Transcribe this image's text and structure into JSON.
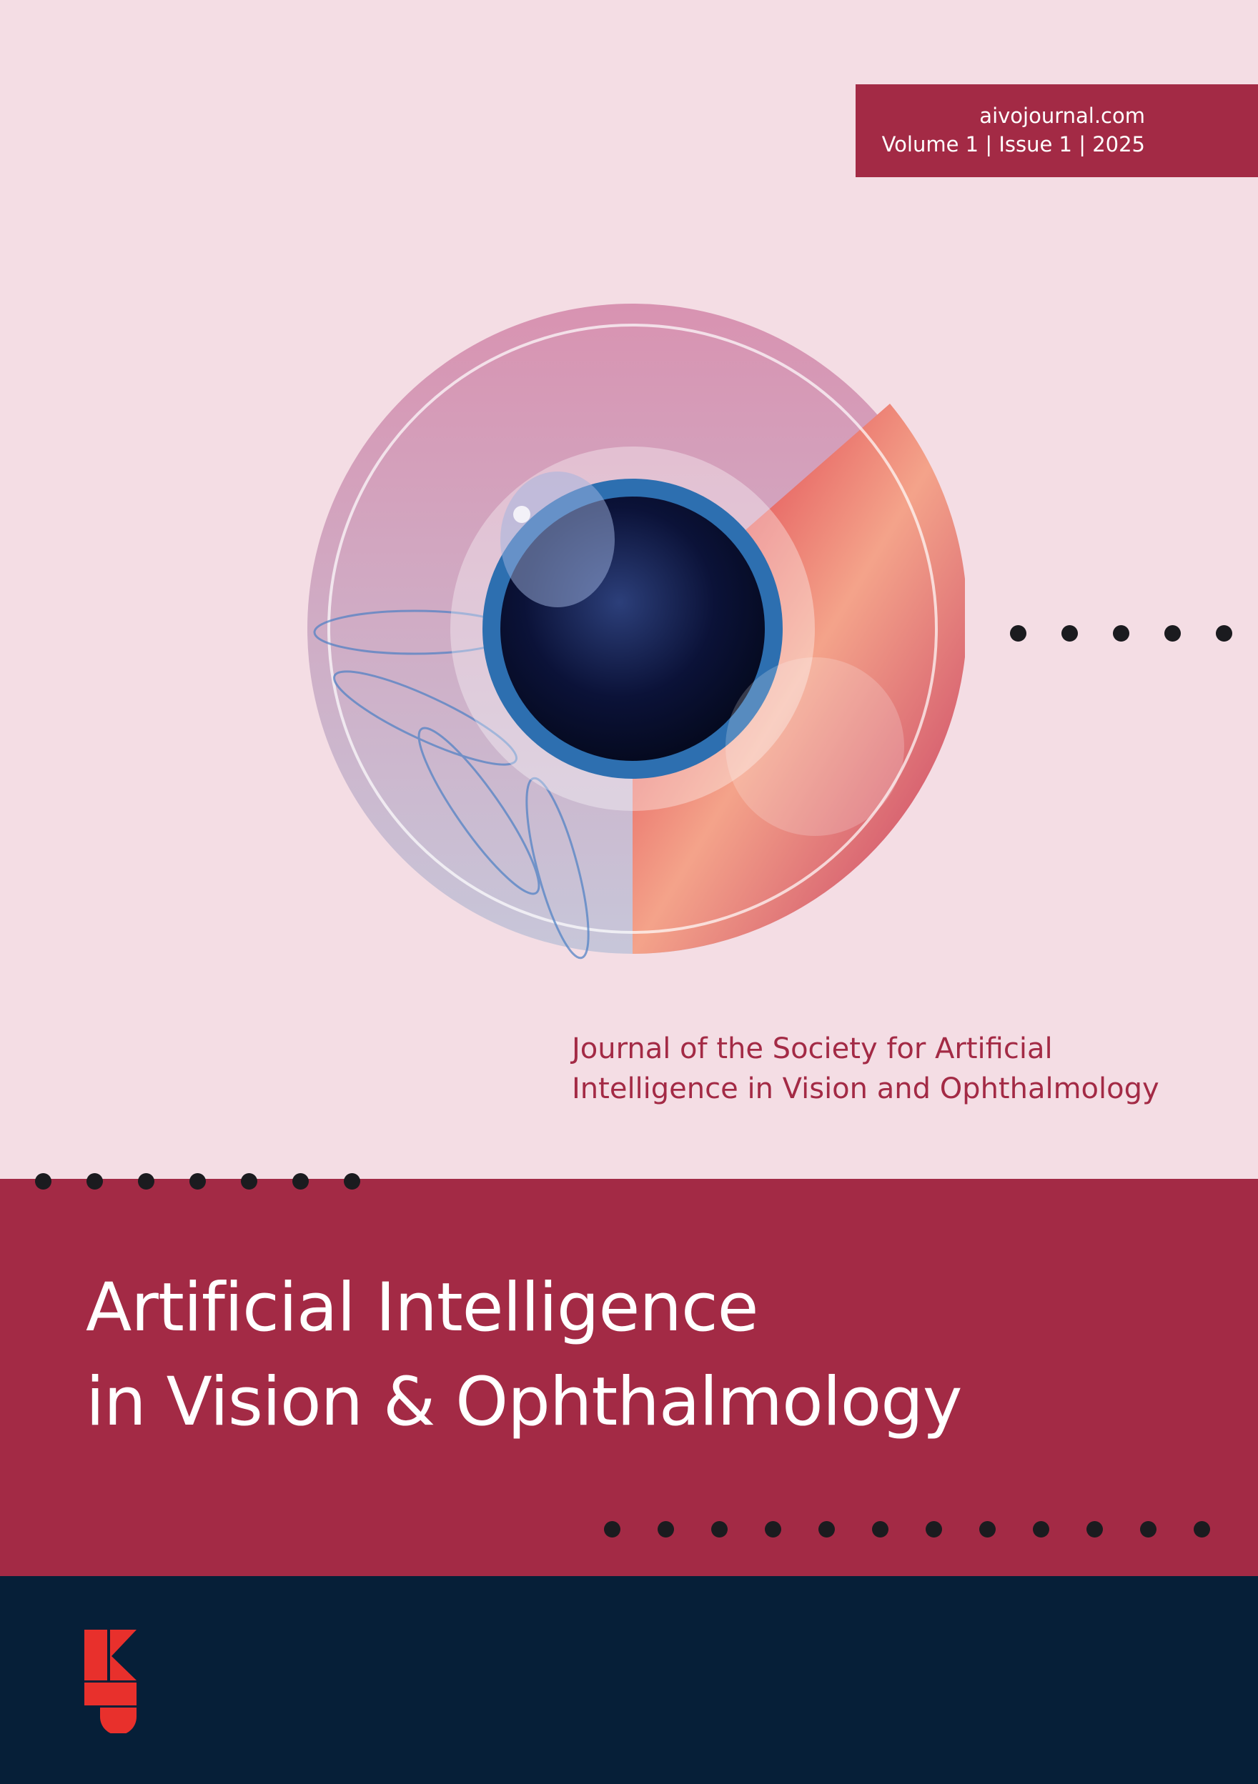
{
  "header": {
    "website": "aivojournal.com",
    "issue_line": "Volume 1 | Issue 1 | 2025"
  },
  "subtitle": {
    "line1": "Journal of the  Society for Artificial",
    "line2": "Intelligence in Vision and Ophthalmology"
  },
  "title": {
    "line1": "Artificial Intelligence",
    "line2": "in Vision & Ophthalmology"
  },
  "colors": {
    "background": "#f4dde4",
    "accent": "#a32a45",
    "footer": "#061f38",
    "logo": "#e8302c"
  },
  "icons": {
    "cover_art": "eye-illustration",
    "publisher_logo": "k-logo"
  }
}
